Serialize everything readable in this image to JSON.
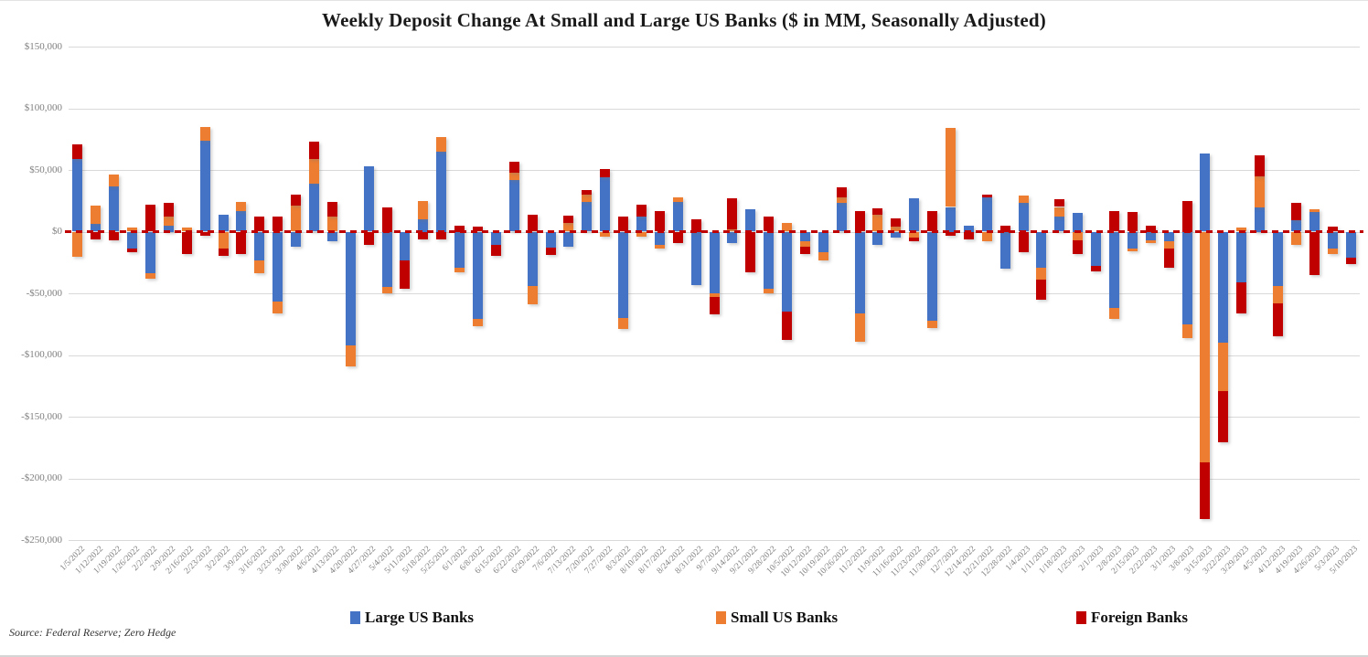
{
  "page": {
    "background": "#ffffff"
  },
  "chart_data": {
    "type": "bar",
    "variant": "stacked",
    "title": "Weekly Deposit Change At Small and Large US Banks ($ in MM,  Seasonally Adjusted)",
    "source_note": "Source: Federal Reserve; Zero Hedge",
    "legend_position": "bottom",
    "grid": true,
    "y_axis": {
      "min": -250000,
      "max": 150000,
      "step": 50000,
      "tick_labels": [
        "$150,000",
        "$100,000",
        "$50,000",
        "$0",
        "-$50,000",
        "-$100,000",
        "-$150,000",
        "-$200,000",
        "-$250,000"
      ]
    },
    "zero_line": {
      "color": "#C00000",
      "style": "dashed"
    },
    "categories": [
      "1/5/2022",
      "1/12/2022",
      "1/19/2022",
      "1/26/2022",
      "2/2/2022",
      "2/9/2022",
      "2/16/2022",
      "2/23/2022",
      "3/2/2022",
      "3/9/2022",
      "3/16/2022",
      "3/23/2022",
      "3/30/2022",
      "4/6/2022",
      "4/13/2022",
      "4/20/2022",
      "4/27/2022",
      "5/4/2022",
      "5/11/2022",
      "5/18/2022",
      "5/25/2022",
      "6/1/2022",
      "6/8/2022",
      "6/15/2022",
      "6/22/2022",
      "6/29/2022",
      "7/6/2022",
      "7/13/2022",
      "7/20/2022",
      "7/27/2022",
      "8/3/2022",
      "8/10/2022",
      "8/17/2022",
      "8/24/2022",
      "8/31/2022",
      "9/7/2022",
      "9/14/2022",
      "9/21/2022",
      "9/28/2022",
      "10/5/2022",
      "10/12/2022",
      "10/19/2022",
      "10/26/2022",
      "11/2/2022",
      "11/9/2022",
      "11/16/2022",
      "11/23/2022",
      "11/30/2022",
      "12/7/2022",
      "12/14/2022",
      "12/21/2022",
      "12/28/2022",
      "1/4/2023",
      "1/11/2023",
      "1/18/2023",
      "1/25/2023",
      "2/1/2023",
      "2/8/2023",
      "2/15/2023",
      "2/22/2023",
      "3/1/2023",
      "3/8/2023",
      "3/15/2023",
      "3/22/2023",
      "3/29/2023",
      "4/5/2023",
      "4/12/2023",
      "4/19/2023",
      "4/26/2023",
      "5/3/2023",
      "5/10/2023"
    ],
    "series": [
      {
        "name": "Large US Banks",
        "color": "#4472C4",
        "values": [
          59000,
          6000,
          37000,
          -14000,
          -34000,
          5000,
          0,
          74000,
          14000,
          17000,
          -23000,
          -57000,
          -12000,
          39000,
          -8000,
          -92000,
          53000,
          -45000,
          -23000,
          10000,
          65000,
          -29000,
          -71000,
          -11000,
          42000,
          -44000,
          -13000,
          -12000,
          24000,
          44000,
          -70000,
          12000,
          -11000,
          24000,
          -43000,
          -50000,
          -9000,
          18000,
          -46000,
          -65000,
          -8000,
          -17000,
          23000,
          -66000,
          -11000,
          -5000,
          27000,
          -72000,
          20000,
          5000,
          28000,
          -30000,
          23000,
          -29000,
          12000,
          15000,
          -28000,
          -62000,
          -14000,
          -7000,
          -8000,
          -75000,
          63000,
          -90000,
          -41000,
          20000,
          -44000,
          9000,
          16000,
          -14000,
          -21000
        ]
      },
      {
        "name": "Small US Banks",
        "color": "#ED7D31",
        "values": [
          -20000,
          15000,
          9000,
          3000,
          -4000,
          7000,
          3000,
          11000,
          -14000,
          7000,
          -11000,
          -9000,
          21000,
          20000,
          12000,
          -17000,
          0,
          -5000,
          0,
          15000,
          12000,
          -4000,
          -6000,
          0,
          6000,
          -15000,
          0,
          7000,
          6000,
          -4000,
          -9000,
          -4000,
          -3000,
          4000,
          0,
          -3000,
          2000,
          0,
          -4000,
          7000,
          -4000,
          -6000,
          5000,
          -23000,
          14000,
          4000,
          -5000,
          -6000,
          64000,
          0,
          -8000,
          0,
          6000,
          -10000,
          8000,
          -7000,
          0,
          -9000,
          -2000,
          -2000,
          -6000,
          -11000,
          -187000,
          -39000,
          3000,
          25000,
          -14000,
          -11000,
          2000,
          -4000,
          0
        ]
      },
      {
        "name": "Foreign Banks",
        "color": "#C00000",
        "values": [
          12000,
          -6000,
          -7000,
          -3000,
          22000,
          11000,
          -18000,
          -3000,
          -6000,
          -18000,
          12000,
          12000,
          9000,
          14000,
          12000,
          0,
          -11000,
          20000,
          -23000,
          -6000,
          -6000,
          5000,
          4000,
          -9000,
          9000,
          14000,
          -6000,
          6000,
          4000,
          7000,
          12000,
          10000,
          17000,
          -9000,
          10000,
          -14000,
          25000,
          -33000,
          12000,
          -23000,
          -6000,
          0,
          8000,
          17000,
          5000,
          7000,
          -3000,
          17000,
          -3000,
          -6000,
          2000,
          5000,
          -17000,
          -16000,
          6000,
          -11000,
          -4000,
          17000,
          16000,
          5000,
          -15000,
          25000,
          -46000,
          -42000,
          -25000,
          17000,
          -27000,
          14000,
          -35000,
          4000,
          -5000
        ]
      }
    ]
  }
}
